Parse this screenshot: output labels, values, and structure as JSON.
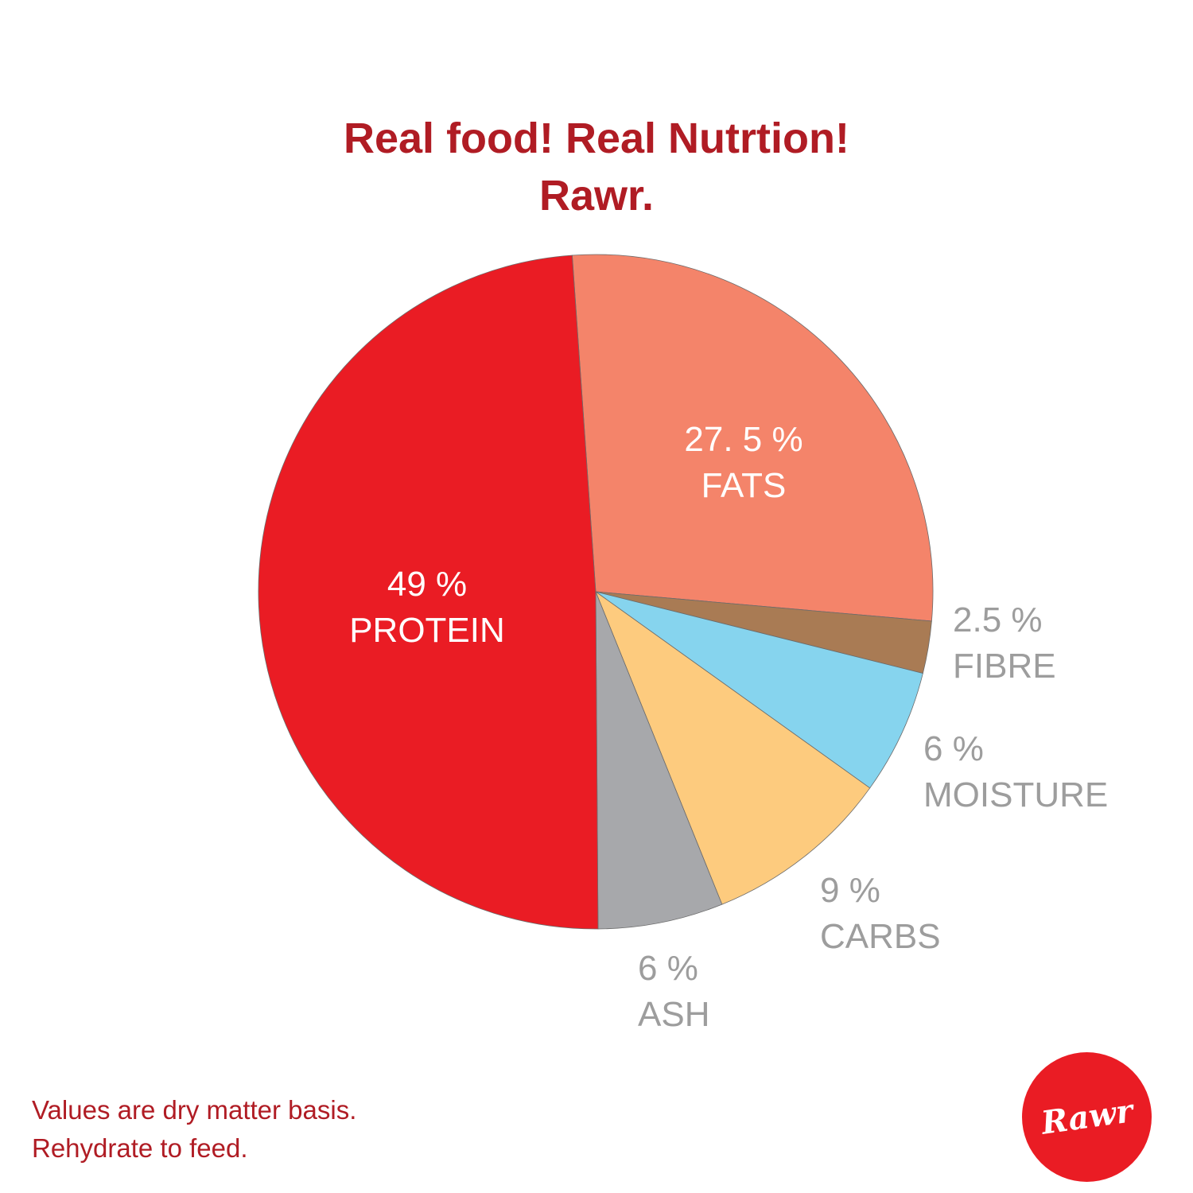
{
  "title": {
    "line1": "Real food! Real Nutrtion!",
    "line2": "Rawr."
  },
  "chart_data": {
    "type": "pie",
    "start_angle_deg": -4,
    "direction": "clockwise",
    "slices": [
      {
        "key": "fats",
        "value_label": "27. 5 %",
        "name": "FATS",
        "value": 27.5,
        "color": "#f4846a"
      },
      {
        "key": "fibre",
        "value_label": "2.5 %",
        "name": "FIBRE",
        "value": 2.5,
        "color": "#a97b54"
      },
      {
        "key": "moisture",
        "value_label": "6 %",
        "name": "MOISTURE",
        "value": 6,
        "color": "#86d4ee"
      },
      {
        "key": "carbs",
        "value_label": "9 %",
        "name": "CARBS",
        "value": 9,
        "color": "#fdcb7e"
      },
      {
        "key": "ash",
        "value_label": "6 %",
        "name": "ASH",
        "value": 6,
        "color": "#a7a8ab"
      },
      {
        "key": "protein",
        "value_label": "49 %",
        "name": "PROTEIN",
        "value": 49,
        "color": "#ea1c24"
      }
    ]
  },
  "footnote": {
    "line1": "Values are dry matter basis.",
    "line2": "Rehydrate to feed."
  },
  "logo": {
    "text": "Rawr",
    "color": "#ea1c24"
  }
}
